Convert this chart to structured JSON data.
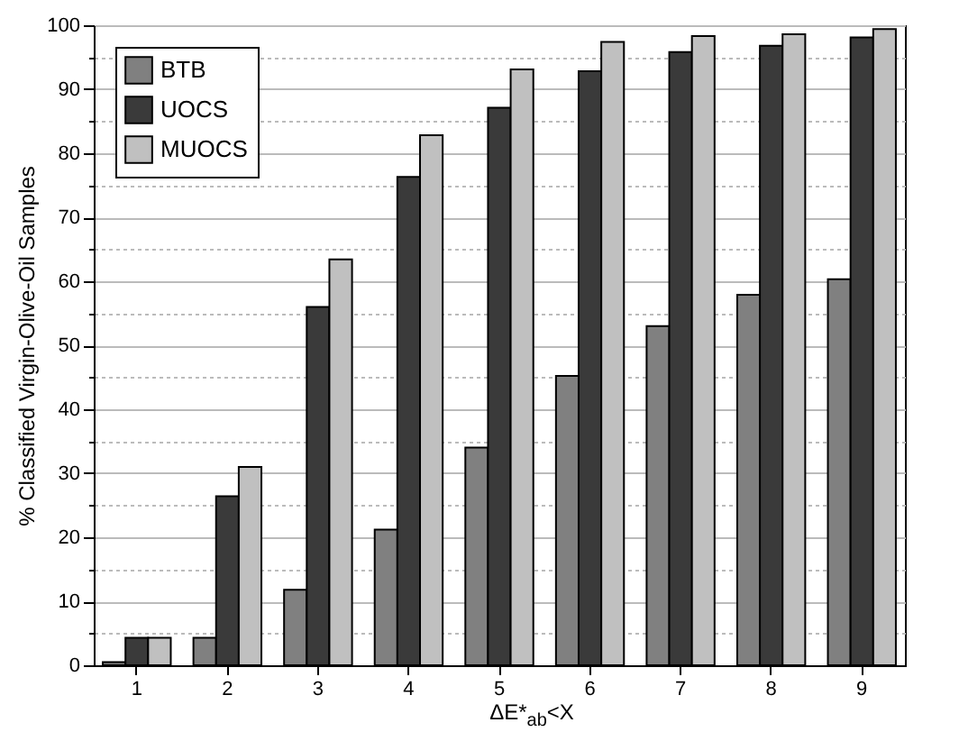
{
  "chart_data": {
    "type": "bar",
    "xlabel": "ΔE*$_{ab}$<X",
    "ylabel": "% Classified Virgin-Olive-Oil Samples",
    "categories": [
      "1",
      "2",
      "3",
      "4",
      "5",
      "6",
      "7",
      "8",
      "9"
    ],
    "series": [
      {
        "name": "BTB",
        "color": "#808080",
        "values": [
          0.5,
          4.3,
          11.8,
          21.2,
          34,
          45.2,
          53,
          57.9,
          60.3
        ]
      },
      {
        "name": "UOCS",
        "color": "#3a3a3a",
        "values": [
          4.3,
          26.4,
          56,
          76.3,
          87.1,
          92.8,
          95.8,
          96.8,
          98.1
        ]
      },
      {
        "name": "MUOCS",
        "color": "#c0c0c0",
        "values": [
          4.3,
          31,
          63.4,
          82.8,
          93.1,
          97.4,
          98.3,
          98.6,
          99.4
        ]
      }
    ],
    "ylim": [
      0,
      100
    ],
    "yticks": [
      0,
      {
        "value": 5,
        "label": null
      },
      10,
      {
        "value": 15,
        "label": null
      },
      20,
      {
        "value": 25,
        "label": null
      },
      30,
      {
        "value": 35,
        "label": null
      },
      40,
      {
        "value": 45,
        "label": null
      },
      50,
      {
        "value": 55,
        "label": null
      },
      60,
      {
        "value": 65,
        "label": null
      },
      70,
      {
        "value": 75,
        "label": null
      },
      80,
      {
        "value": 85,
        "label": null
      },
      90,
      {
        "value": 95,
        "label": null
      },
      100
    ],
    "grid": "y",
    "legend": "top left"
  }
}
